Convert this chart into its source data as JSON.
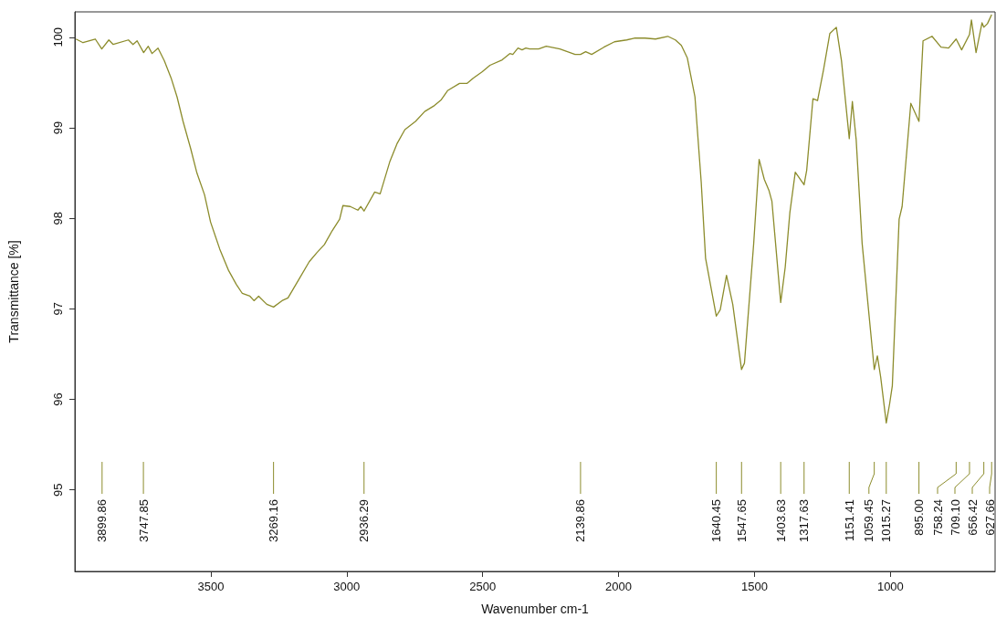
{
  "chart_data": {
    "type": "line",
    "xlabel": "Wavenumber cm-1",
    "ylabel": "Transmittance [%]",
    "xlim": [
      4000,
      615
    ],
    "xticks": [
      3500,
      3000,
      2500,
      2000,
      1500,
      1000
    ],
    "ylim": [
      94.1,
      100.28
    ],
    "yticks": [
      95,
      96,
      97,
      98,
      99,
      100
    ],
    "grid": false,
    "marker": "none",
    "line_style": "solid",
    "series": [
      {
        "color": "#8c8c2c",
        "x": [
          3996,
          3970,
          3925,
          3901,
          3875,
          3859,
          3803,
          3786,
          3771,
          3747,
          3730,
          3716,
          3694,
          3671,
          3646,
          3624,
          3602,
          3574,
          3551,
          3523,
          3501,
          3467,
          3434,
          3406,
          3384,
          3356,
          3341,
          3324,
          3294,
          3269.16,
          3238,
          3216,
          3177,
          3138,
          3110,
          3082,
          3054,
          3026,
          3014,
          2987,
          2959,
          2948,
          2936.29,
          2897,
          2877,
          2841,
          2814,
          2786,
          2747,
          2713,
          2680,
          2652,
          2629,
          2585,
          2557,
          2534,
          2501,
          2473,
          2428,
          2400,
          2389,
          2370,
          2355,
          2341,
          2327,
          2294,
          2266,
          2216,
          2188,
          2160,
          2139.86,
          2121,
          2099,
          2054,
          2015,
          1970,
          1942,
          1903,
          1864,
          1819,
          1791,
          1769,
          1747,
          1719,
          1696,
          1680,
          1640.45,
          1626,
          1603,
          1580,
          1547.65,
          1537,
          1503,
          1483,
          1464,
          1447,
          1436,
          1403.63,
          1387,
          1370,
          1350,
          1317.63,
          1308,
          1285,
          1268,
          1246,
          1223,
          1199,
          1180,
          1151.41,
          1140,
          1126,
          1104,
          1059.45,
          1048,
          1036,
          1015.27,
          1003,
          993,
          968,
          957,
          925,
          895,
          880,
          847,
          814,
          786,
          758.24,
          738,
          709.1,
          702,
          685,
          663,
          656.42,
          643,
          627.66
        ],
        "values": [
          99.98,
          99.94,
          99.98,
          99.87,
          99.97,
          99.92,
          99.97,
          99.92,
          99.96,
          99.83,
          99.9,
          99.82,
          99.88,
          99.74,
          99.55,
          99.34,
          99.07,
          98.77,
          98.5,
          98.26,
          97.96,
          97.66,
          97.42,
          97.27,
          97.17,
          97.14,
          97.09,
          97.14,
          97.05,
          97.02,
          97.09,
          97.12,
          97.32,
          97.52,
          97.62,
          97.71,
          97.86,
          97.99,
          98.14,
          98.13,
          98.09,
          98.13,
          98.08,
          98.29,
          98.27,
          98.63,
          98.83,
          98.98,
          99.07,
          99.18,
          99.24,
          99.31,
          99.41,
          99.49,
          99.49,
          99.55,
          99.62,
          99.69,
          99.75,
          99.82,
          99.81,
          99.88,
          99.86,
          99.88,
          99.87,
          99.87,
          99.9,
          99.87,
          99.84,
          99.81,
          99.81,
          99.84,
          99.81,
          99.89,
          99.95,
          99.97,
          99.99,
          99.99,
          99.98,
          100.01,
          99.97,
          99.91,
          99.77,
          99.34,
          98.4,
          97.56,
          96.92,
          96.99,
          97.37,
          97.05,
          96.33,
          96.4,
          97.72,
          98.65,
          98.43,
          98.31,
          98.19,
          97.07,
          97.46,
          98.06,
          98.51,
          98.37,
          98.53,
          99.32,
          99.3,
          99.64,
          100.04,
          100.11,
          99.74,
          98.88,
          99.29,
          98.87,
          97.72,
          96.33,
          96.48,
          96.25,
          95.74,
          95.95,
          96.15,
          97.99,
          98.13,
          99.27,
          99.07,
          99.96,
          100.01,
          99.89,
          99.88,
          99.98,
          99.86,
          100.03,
          100.19,
          99.83,
          100.16,
          100.11,
          100.15,
          100.25
        ]
      }
    ],
    "annotations": [
      {
        "text": "3899.86",
        "x": 3899.86
      },
      {
        "text": "3747.85",
        "x": 3747.85
      },
      {
        "text": "3269.16",
        "x": 3269.16
      },
      {
        "text": "2936.29",
        "x": 2936.29
      },
      {
        "text": "2139.86",
        "x": 2139.86
      },
      {
        "text": "1640.45",
        "x": 1640.45
      },
      {
        "text": "1547.65",
        "x": 1547.65
      },
      {
        "text": "1403.63",
        "x": 1403.63
      },
      {
        "text": "1317.63",
        "x": 1317.63
      },
      {
        "text": "1151.41",
        "x": 1151.41
      },
      {
        "text": "1059.45",
        "x": 1059.45
      },
      {
        "text": "1015.27",
        "x": 1015.27
      },
      {
        "text": "895.00",
        "x": 895
      },
      {
        "text": "758.24",
        "x": 758.24
      },
      {
        "text": "709.10",
        "x": 709.1
      },
      {
        "text": "656.42",
        "x": 656.42
      },
      {
        "text": "627.66",
        "x": 627.66
      }
    ]
  }
}
